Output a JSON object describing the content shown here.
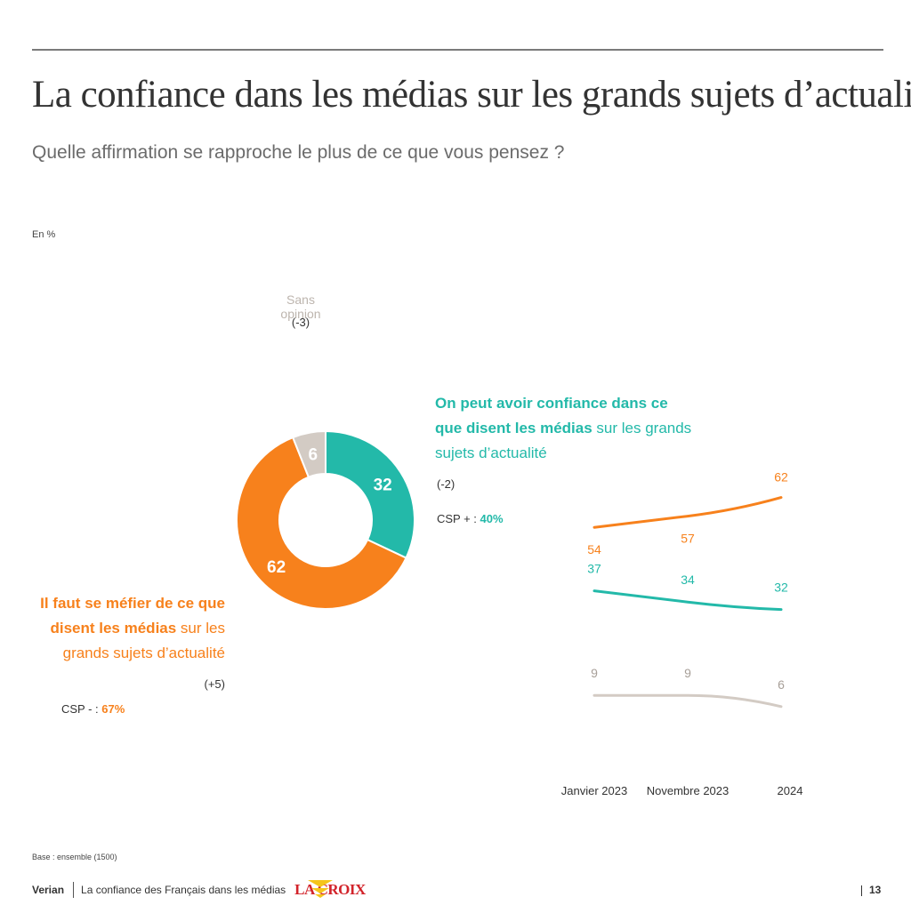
{
  "header": {
    "title": "La confiance dans les médias sur les grands sujets d’actualité",
    "subtitle": "Quelle affirmation se rapproche le plus de ce que vous pensez ?",
    "unit": "En %"
  },
  "labels": {
    "sans_opinion": "Sans opinion",
    "sans_opinion_delta": "(-3)",
    "teal_bold": "On peut avoir confiance dans ce que disent les médias",
    "teal_rest": " sur les grands sujets d’actualité",
    "teal_delta": "(-2)",
    "csp_plus_label": "CSP + : ",
    "csp_plus_value": "40%",
    "orange_bold": "Il faut se méfier de ce que disent les médias",
    "orange_rest": " sur les grands sujets d’actualité",
    "orange_delta": "(+5)",
    "csp_minus_label": "CSP - : ",
    "csp_minus_value": "67%"
  },
  "colors": {
    "teal": "#23b9a9",
    "orange": "#f7811c",
    "grey": "#d3cbc4"
  },
  "chart_data": [
    {
      "type": "pie",
      "categories": [
        "On peut avoir confiance dans ce que disent les médias sur les grands sujets d’actualité",
        "Il faut se méfier de ce que disent les médias sur les grands sujets d’actualité",
        "Sans opinion"
      ],
      "values": [
        32,
        62,
        6
      ],
      "data_labels": [
        "32",
        "62",
        "6"
      ]
    },
    {
      "type": "line",
      "x": [
        "Janvier 2023",
        "Novembre 2023",
        "2024"
      ],
      "series": [
        {
          "values": [
            54,
            57,
            62
          ],
          "labels": [
            "54",
            "57",
            "62"
          ]
        },
        {
          "values": [
            37,
            34,
            32
          ],
          "labels": [
            "37",
            "34",
            "32"
          ]
        },
        {
          "values": [
            9,
            9,
            6
          ],
          "labels": [
            "9",
            "9",
            "6"
          ]
        }
      ]
    }
  ],
  "footer": {
    "base": "Base : ensemble (1500)",
    "brand": "Verian",
    "study": "La confiance des Français dans les médias",
    "partner": "LA CROIX",
    "page": "13"
  }
}
